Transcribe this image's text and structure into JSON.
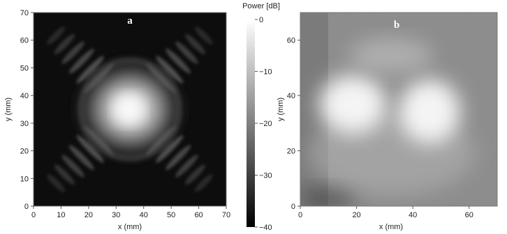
{
  "chart_data": [
    {
      "type": "heatmap",
      "panel_label": "a",
      "xlabel": "x (mm)",
      "ylabel": "y (mm)",
      "xlim": [
        0,
        70
      ],
      "ylim": [
        0,
        70
      ],
      "xticks": [
        0,
        10,
        20,
        30,
        40,
        50,
        60,
        70
      ],
      "yticks": [
        0,
        10,
        20,
        30,
        40,
        50,
        60,
        70
      ],
      "colormap": "grayscale",
      "features": {
        "main_lobe": {
          "x": 35,
          "y": 35,
          "level_db": 0
        },
        "side_lobes": "diagonal stripe pattern toward four corners",
        "background_db": -40
      }
    },
    {
      "type": "heatmap",
      "panel_label": "b",
      "xlabel": "x (mm)",
      "ylabel": "y (mm)",
      "xlim": [
        0,
        70
      ],
      "ylim": [
        0,
        70
      ],
      "xticks": [
        0,
        20,
        40,
        60
      ],
      "yticks": [
        0,
        20,
        40,
        60
      ],
      "colormap": "grayscale",
      "features": {
        "bright_regions": [
          {
            "x": 15,
            "y": 35
          },
          {
            "x": 48,
            "y": 32
          }
        ],
        "background": "noisy mid-gray"
      }
    },
    {
      "type": "colorbar",
      "title": "Power [dB]",
      "range": [
        -40,
        0
      ],
      "ticks": [
        0,
        -10,
        -20,
        -30,
        -40
      ]
    }
  ]
}
